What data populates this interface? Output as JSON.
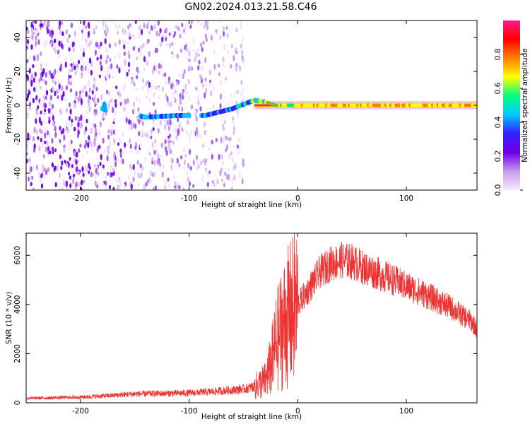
{
  "title": "GN02.2024.013.21.58.C46",
  "chart_data": [
    {
      "type": "heatmap",
      "xlabel": "Height of straight line (km)",
      "ylabel": "Frequency (Hz)",
      "xlim": [
        -250,
        165
      ],
      "ylim": [
        -50,
        50
      ],
      "xticks": [
        -200,
        -100,
        0,
        100
      ],
      "yticks": [
        -40,
        -20,
        0,
        20,
        40
      ],
      "colorbar": {
        "label": "Normalized spectral amplitude",
        "range": [
          0,
          1
        ],
        "ticks": [
          "0.0",
          "0.2",
          "0.4",
          "0.6",
          "0.8"
        ],
        "tick_values": [
          0.0,
          0.2,
          0.4,
          0.6,
          0.8
        ],
        "colors": [
          "#f4ecfb",
          "#c79af0",
          "#6a00e8",
          "#3a1cff",
          "#00c8ff",
          "#00ff7f",
          "#ffff00",
          "#ff8000",
          "#ff0000",
          "#ff1a80"
        ]
      },
      "features": {
        "noise_region_x": [
          -250,
          -50
        ],
        "signal_track": [
          {
            "x": -180,
            "y": -2
          },
          {
            "x": -140,
            "y": -7
          },
          {
            "x": -110,
            "y": -6
          },
          {
            "x": -85,
            "y": -6
          },
          {
            "x": -60,
            "y": -2
          },
          {
            "x": -40,
            "y": 3
          },
          {
            "x": -30,
            "y": 2
          },
          {
            "x": -20,
            "y": 0
          },
          {
            "x": 0,
            "y": 0
          },
          {
            "x": 100,
            "y": 0
          },
          {
            "x": 165,
            "y": 0
          }
        ],
        "steady_line_y": 0
      }
    },
    {
      "type": "line",
      "xlabel": "Height of straight line (km)",
      "ylabel": "SNR (10 * v/v)",
      "xlim": [
        -250,
        165
      ],
      "ylim": [
        0,
        6900
      ],
      "xticks": [
        -200,
        -100,
        0,
        100
      ],
      "yticks": [
        0,
        2000,
        4000,
        6000
      ],
      "color": "#ee3333",
      "series": [
        {
          "x": [
            -250,
            -200,
            -170,
            -150,
            -100,
            -80,
            -60,
            -50,
            -40,
            -30,
            -25,
            -20,
            -15,
            -10,
            0,
            10,
            20,
            30,
            40,
            50,
            60,
            80,
            100,
            120,
            140,
            160,
            165
          ],
          "values": [
            180,
            230,
            300,
            360,
            400,
            450,
            520,
            560,
            650,
            900,
            1500,
            2400,
            3000,
            3400,
            4000,
            4600,
            5300,
            5650,
            5800,
            5750,
            5500,
            5150,
            4750,
            4350,
            3900,
            3300,
            3000
          ]
        }
      ]
    }
  ]
}
